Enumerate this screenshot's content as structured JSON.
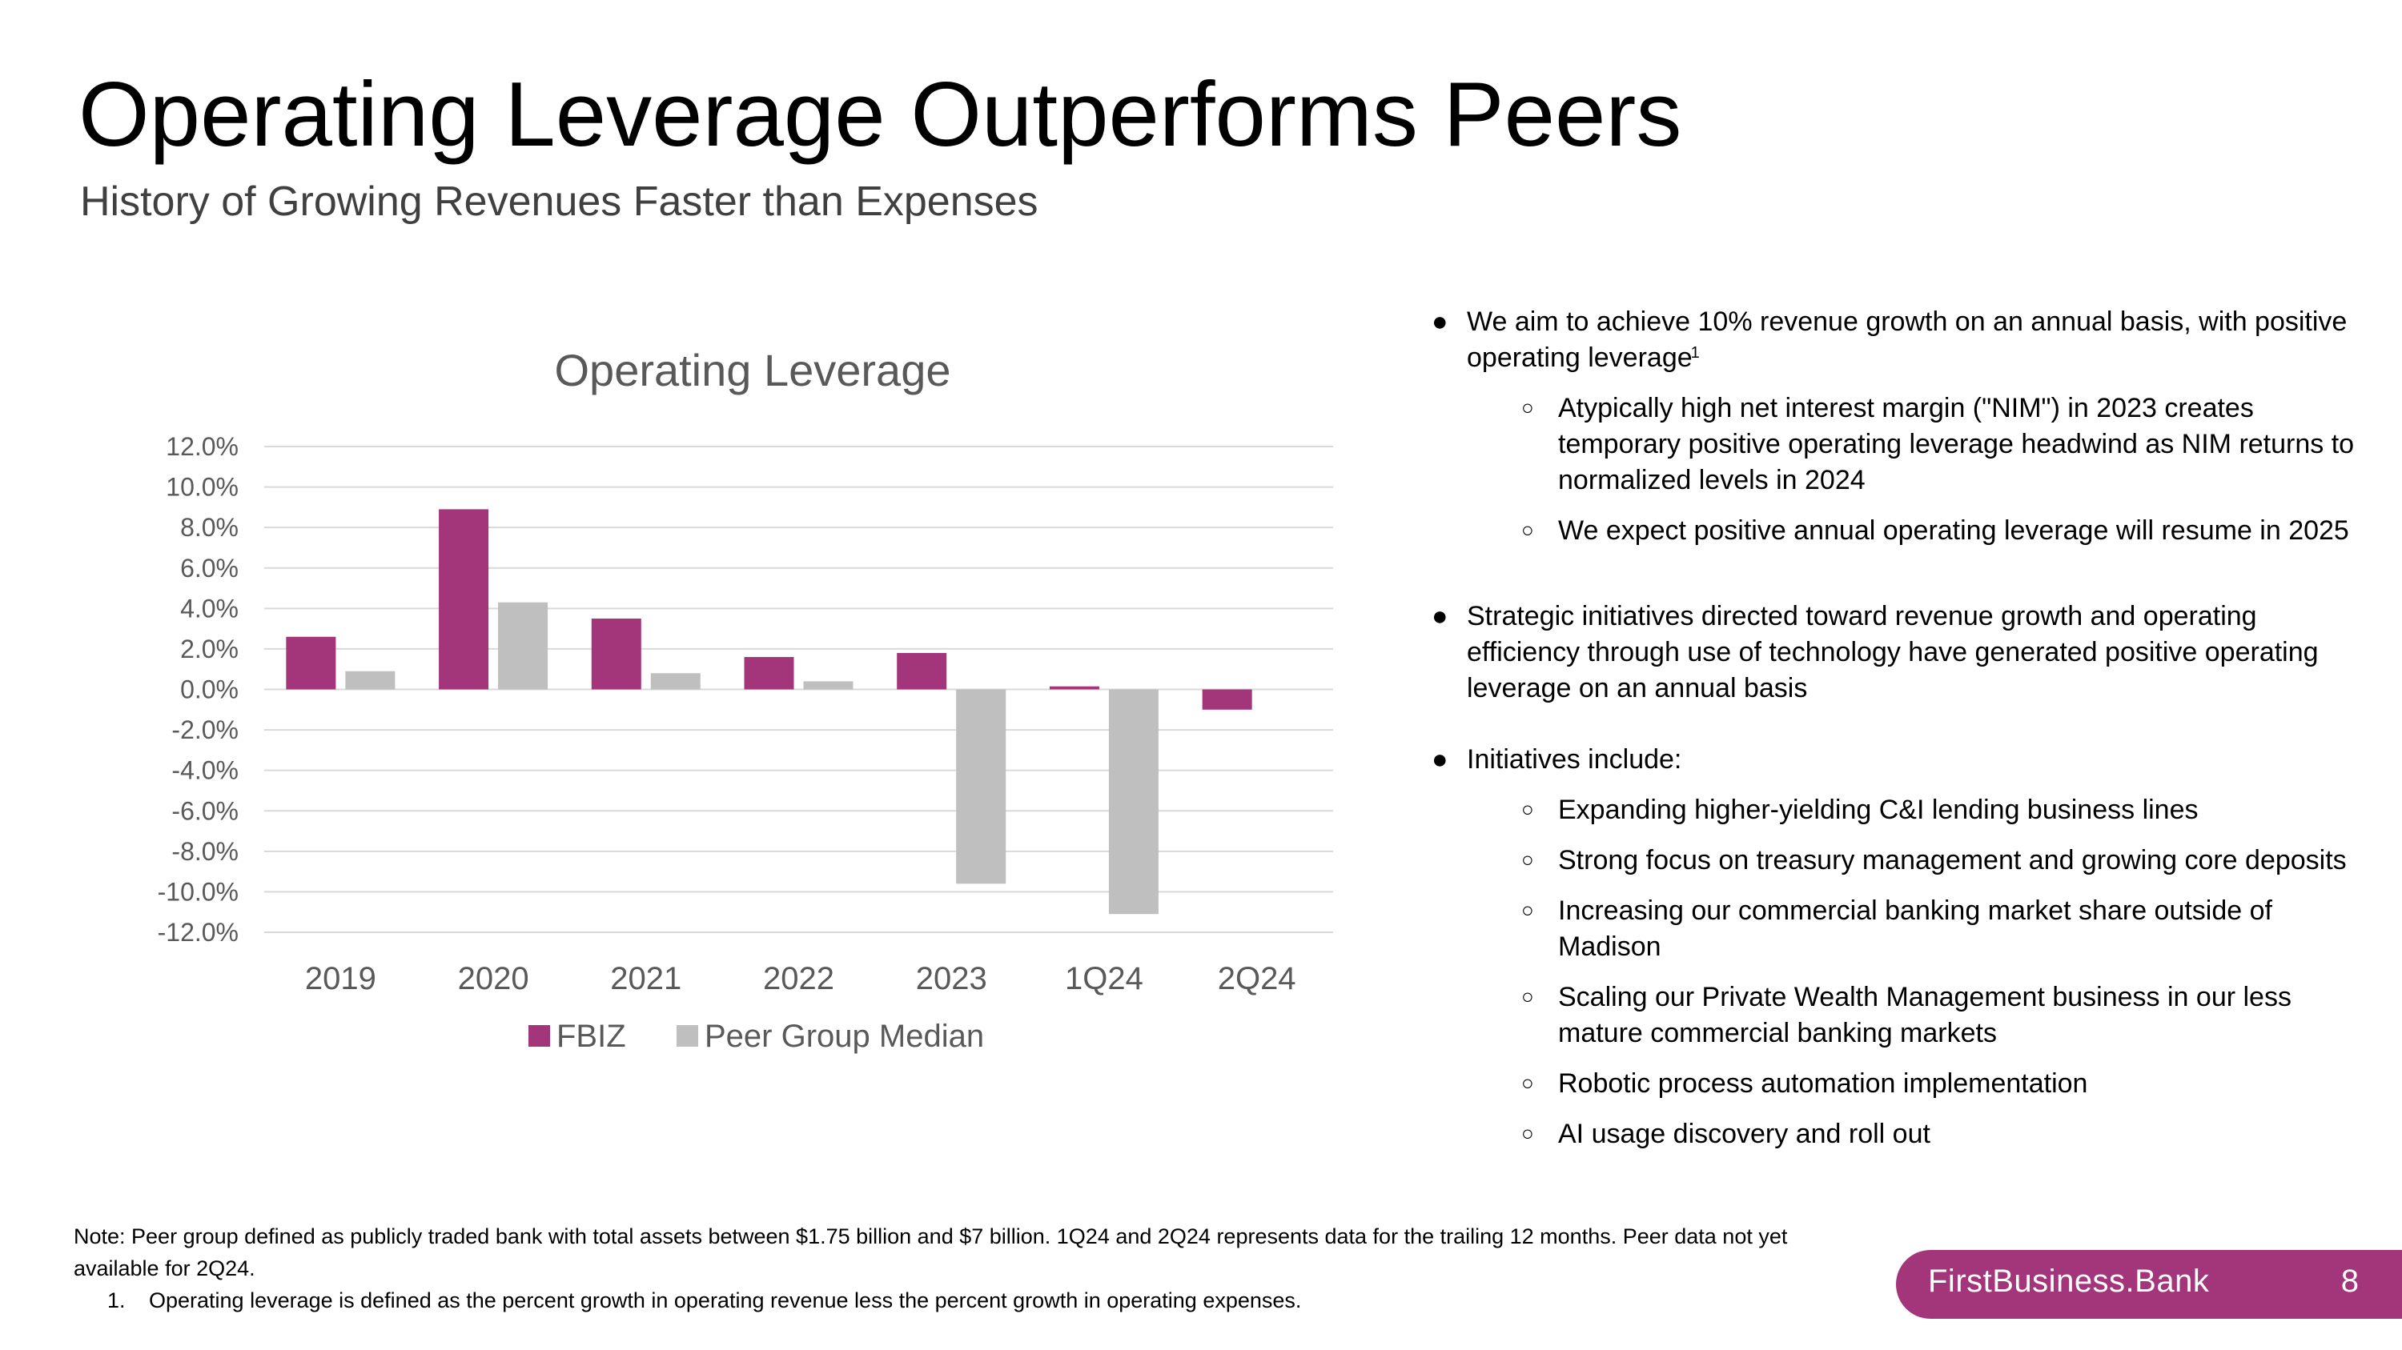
{
  "slide": {
    "title": "Operating Leverage Outperforms Peers",
    "subtitle": "History of Growing Revenues Faster than Expenses"
  },
  "chart_data": {
    "type": "bar",
    "title": "Operating Leverage",
    "categories": [
      "2019",
      "2020",
      "2021",
      "2022",
      "2023",
      "1Q24",
      "2Q24"
    ],
    "series": [
      {
        "name": "FBIZ",
        "color": "#a3357a",
        "values": [
          2.6,
          8.9,
          3.5,
          1.6,
          1.8,
          0.15,
          -1.0
        ]
      },
      {
        "name": "Peer Group Median",
        "color": "#bfbfbf",
        "values": [
          0.9,
          4.3,
          0.8,
          0.4,
          -9.6,
          -11.1,
          null
        ]
      }
    ],
    "ylim": [
      -12,
      12
    ],
    "yticks": [
      "12.0%",
      "10.0%",
      "8.0%",
      "6.0%",
      "4.0%",
      "2.0%",
      "0.0%",
      "-2.0%",
      "-4.0%",
      "-6.0%",
      "-8.0%",
      "-10.0%",
      "-12.0%"
    ],
    "xlabel": "",
    "ylabel": "",
    "grid": true,
    "legend_position": "bottom"
  },
  "bullets": {
    "b1": {
      "text": "We aim to achieve 10% revenue growth on an annual basis, with positive operating leverage",
      "footnote_ref": "1"
    },
    "b1_subs": [
      "Atypically high net interest margin (\"NIM\") in 2023 creates temporary positive operating leverage headwind as NIM returns to normalized levels in 2024",
      "We expect positive annual operating leverage will resume in 2025"
    ],
    "b2": "Strategic initiatives directed toward revenue growth and operating efficiency through use of technology have generated positive operating leverage on an annual basis",
    "b3": "Initiatives include:",
    "b3_subs": [
      "Expanding higher-yielding C&I lending business lines",
      "Strong focus on treasury management and growing core deposits",
      "Increasing our commercial banking market share outside of Madison",
      "Scaling our Private Wealth Management business in our less mature commercial banking markets",
      "Robotic process automation implementation",
      "AI usage discovery and roll out"
    ]
  },
  "footnote": {
    "note": "Note: Peer group defined as publicly traded bank with total assets between $1.75 billion and $7 billion. 1Q24 and 2Q24 represents data for the trailing 12 months. Peer data not yet available for 2Q24.",
    "item_number": "1.",
    "item_text": "Operating leverage is defined as the percent growth in operating revenue less the percent growth in operating expenses."
  },
  "brand": {
    "name": "FirstBusiness.Bank",
    "page_number": "8",
    "color": "#a3357a"
  }
}
